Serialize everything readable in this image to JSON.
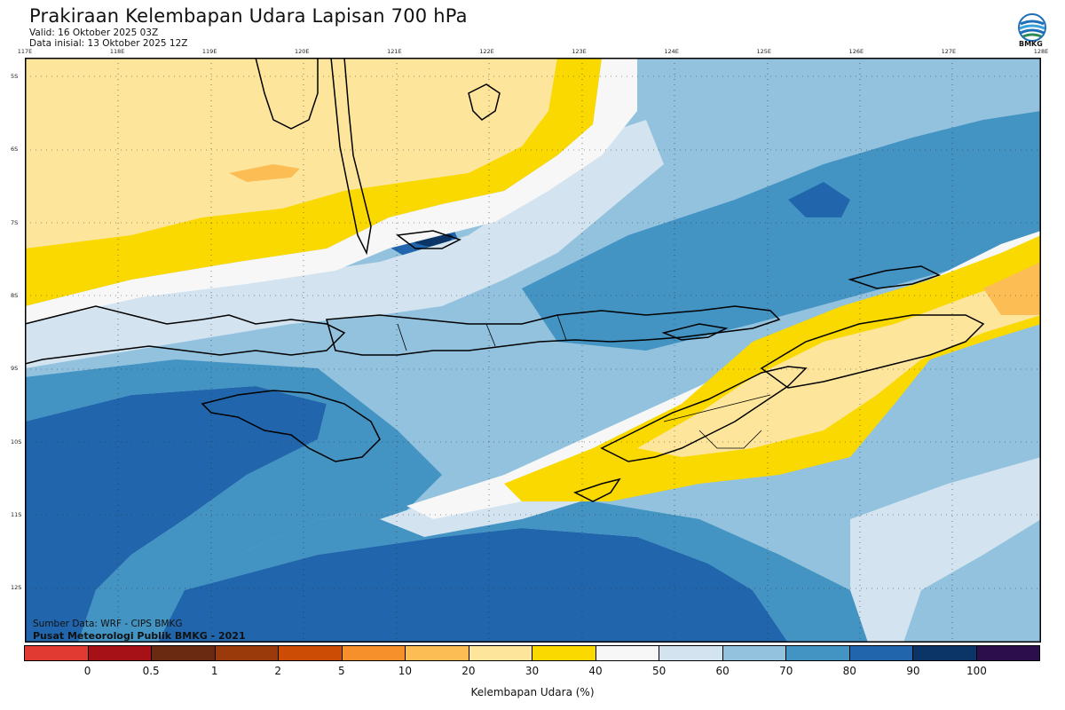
{
  "header": {
    "title": "Prakiraan Kelembapan Udara Lapisan 700 hPa",
    "valid": "Valid: 16 Oktober 2025 03Z",
    "initial": "Data inisial: 13 Oktober 2025 12Z"
  },
  "logo": {
    "text": "BMKG"
  },
  "axes": {
    "longitudes": [
      "117E",
      "118E",
      "119E",
      "120E",
      "121E",
      "122E",
      "123E",
      "124E",
      "125E",
      "126E",
      "127E",
      "128E"
    ],
    "latitudes": [
      "5S",
      "6S",
      "7S",
      "8S",
      "9S",
      "10S",
      "11S",
      "12S"
    ]
  },
  "credits": {
    "source": "Sumber Data: WRF - CIPS BMKG",
    "org": "Pusat Meteorologi Publik BMKG - 2021"
  },
  "legend": {
    "title": "Kelembapan Udara (%)",
    "ticks": [
      "0",
      "0.5",
      "1",
      "2",
      "5",
      "10",
      "20",
      "30",
      "40",
      "50",
      "60",
      "70",
      "80",
      "90",
      "100"
    ],
    "colors": [
      "#e03a32",
      "#a61017",
      "#6a2a12",
      "#9a3a0a",
      "#cc4c06",
      "#f5902a",
      "#fbbd54",
      "#fde69c",
      "#f9d900",
      "#f7f7f7",
      "#d3e4f0",
      "#92c2de",
      "#4393c3",
      "#2166ac",
      "#0a3566",
      "#2d0e4d"
    ]
  },
  "map": {
    "fields": {
      "dry": "#f9d900",
      "dry_light": "#fde69c",
      "dry_orange": "#fbbd54",
      "neutral": "#f7f7f7",
      "moist_light": "#d3e4f0",
      "moist": "#92c2de",
      "wet": "#4393c3",
      "very_wet": "#2166ac",
      "saturated": "#0a3566"
    }
  }
}
